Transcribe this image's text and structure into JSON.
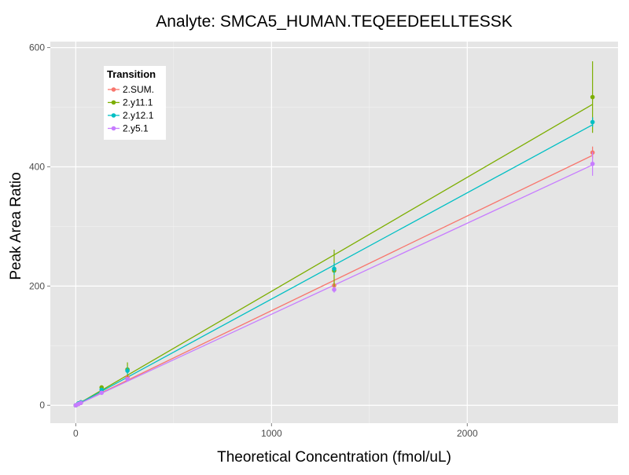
{
  "chart_data": {
    "type": "scatter",
    "title": "Analyte: SMCA5_HUMAN.TEQEEDEELLTESSK",
    "xlabel": "Theoretical Concentration (fmol/uL)",
    "ylabel": "Peak Area Ratio",
    "xlim": [
      -130,
      2770
    ],
    "ylim": [
      -30,
      610
    ],
    "xticks": [
      0,
      1000,
      2000
    ],
    "yticks": [
      0,
      200,
      400,
      600
    ],
    "grid": true,
    "legend": {
      "title": "Transition",
      "placement": "top-left"
    },
    "series": [
      {
        "name": "2.SUM.",
        "color": "#F8766D",
        "slope": 0.1588,
        "points": [
          {
            "x": 0,
            "y": 0,
            "err": 1
          },
          {
            "x": 13,
            "y": 2,
            "err": 1
          },
          {
            "x": 26,
            "y": 4,
            "err": 1
          },
          {
            "x": 132,
            "y": 22,
            "err": 2
          },
          {
            "x": 264,
            "y": 47,
            "err": 3
          },
          {
            "x": 1320,
            "y": 201,
            "err": 8
          },
          {
            "x": 2640,
            "y": 424,
            "err": 10
          }
        ]
      },
      {
        "name": "2.y11.1",
        "color": "#7CAE00",
        "slope": 0.1912,
        "points": [
          {
            "x": 0,
            "y": 0,
            "err": 1
          },
          {
            "x": 13,
            "y": 3,
            "err": 1
          },
          {
            "x": 26,
            "y": 5,
            "err": 1
          },
          {
            "x": 132,
            "y": 30,
            "err": 3
          },
          {
            "x": 264,
            "y": 60,
            "err": 12
          },
          {
            "x": 1320,
            "y": 226,
            "err": 35
          },
          {
            "x": 2640,
            "y": 517,
            "err": 60
          }
        ]
      },
      {
        "name": "2.y12.1",
        "color": "#00BFC4",
        "slope": 0.1782,
        "points": [
          {
            "x": 0,
            "y": 0,
            "err": 1
          },
          {
            "x": 13,
            "y": 3,
            "err": 1
          },
          {
            "x": 26,
            "y": 5,
            "err": 1
          },
          {
            "x": 132,
            "y": 26,
            "err": 3
          },
          {
            "x": 264,
            "y": 58,
            "err": 6
          },
          {
            "x": 1320,
            "y": 229,
            "err": 10
          },
          {
            "x": 2640,
            "y": 475,
            "err": 8
          }
        ]
      },
      {
        "name": "2.y5.1",
        "color": "#C77CFF",
        "slope": 0.1527,
        "points": [
          {
            "x": 0,
            "y": 0,
            "err": 1
          },
          {
            "x": 13,
            "y": 2,
            "err": 1
          },
          {
            "x": 26,
            "y": 4,
            "err": 1
          },
          {
            "x": 132,
            "y": 21,
            "err": 2
          },
          {
            "x": 264,
            "y": 44,
            "err": 3
          },
          {
            "x": 1320,
            "y": 194,
            "err": 5
          },
          {
            "x": 2640,
            "y": 405,
            "err": 20
          }
        ]
      }
    ]
  }
}
